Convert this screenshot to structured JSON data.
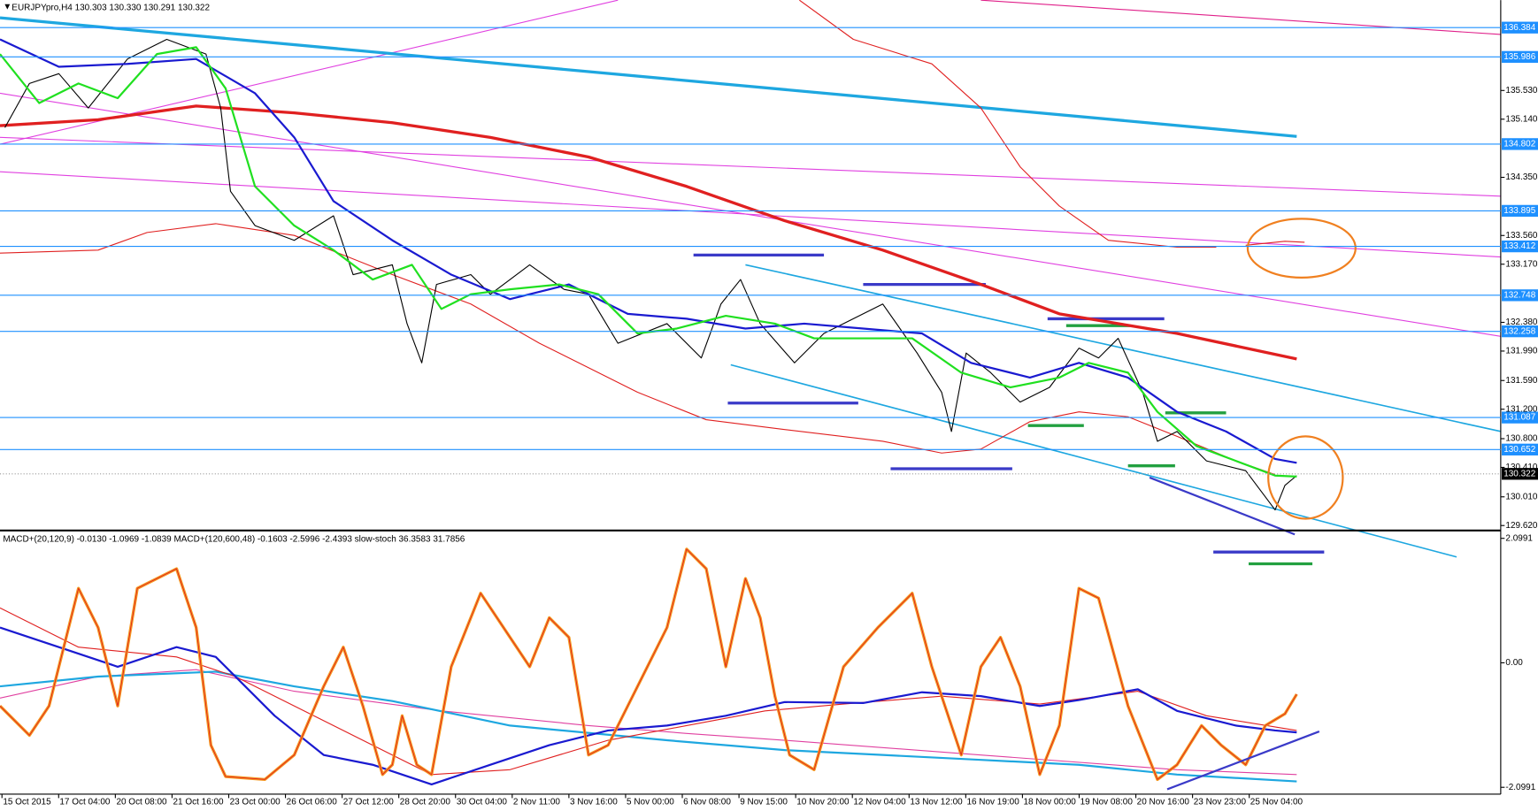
{
  "header": "EURJPYpro,H4  130.303 130.330 130.291 130.322",
  "price_axis": {
    "ylim": [
      129.566,
      136.757
    ],
    "ticks": [
      {
        "value": 135.53,
        "label": "135.530"
      },
      {
        "value": 135.14,
        "label": "135.140"
      },
      {
        "value": 134.35,
        "label": "134.350"
      },
      {
        "value": 133.56,
        "label": "133.560"
      },
      {
        "value": 133.17,
        "label": "133.170"
      },
      {
        "value": 132.38,
        "label": "132.380"
      },
      {
        "value": 131.99,
        "label": "131.990"
      },
      {
        "value": 131.59,
        "label": "131.590"
      },
      {
        "value": 131.2,
        "label": "131.200"
      },
      {
        "value": 130.8,
        "label": "130.800"
      },
      {
        "value": 130.41,
        "label": "130.410"
      },
      {
        "value": 130.01,
        "label": "130.010"
      },
      {
        "value": 129.62,
        "label": "129.620"
      }
    ],
    "levels": [
      136.384,
      135.986,
      134.802,
      133.895,
      133.412,
      132.748,
      132.258,
      131.087,
      130.652
    ],
    "current_price": 130.322
  },
  "time_axis": {
    "labels": [
      "15 Oct 2015",
      "17 Oct 04:00",
      "20 Oct 08:00",
      "21 Oct 16:00",
      "23 Oct 00:00",
      "26 Oct 06:00",
      "27 Oct 12:00",
      "28 Oct 20:00",
      "30 Oct 04:00",
      "2 Nov 11:00",
      "3 Nov 16:00",
      "5 Nov 00:00",
      "6 Nov 08:00",
      "9 Nov 15:00",
      "10 Nov 20:00",
      "12 Nov 04:00",
      "13 Nov 12:00",
      "16 Nov 19:00",
      "18 Nov 00:00",
      "19 Nov 08:00",
      "20 Nov 16:00",
      "23 Nov 23:00",
      "25 Nov 04:00"
    ]
  },
  "indicator": {
    "header": "MACD+(20,120,9) -0.0130 -1.0969 -1.0839  MACD+(120,600,48) -0.1603 -2.5996 -2.4393  slow-stoch 36.3583 31.7856",
    "ylim": [
      -2.215,
      2.215
    ],
    "ticks": [
      2.0991,
      {
        "value": 0,
        "label": "0.00"
      },
      -2.0991
    ]
  }
}
